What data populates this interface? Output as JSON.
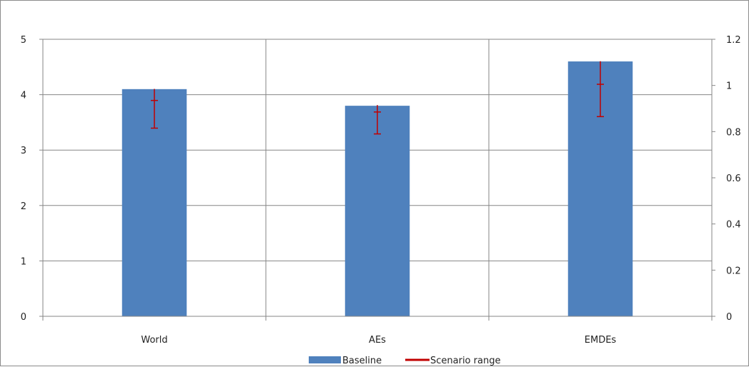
{
  "chart_data": {
    "type": "bar",
    "categories": [
      "World",
      "AEs",
      "EMDEs"
    ],
    "series": [
      {
        "name": "Baseline",
        "values": [
          4.1,
          3.8,
          4.6
        ],
        "color": "#4f81bd"
      }
    ],
    "scenario_range": {
      "name": "Scenario range",
      "color": "#c00000",
      "axis": "secondary",
      "mid": [
        0.935,
        0.885,
        1.005
      ],
      "low": [
        0.815,
        0.79,
        0.865
      ],
      "high": [
        0.985,
        0.915,
        1.105
      ]
    },
    "y_left": {
      "lim": [
        0,
        5
      ],
      "ticks": [
        "0",
        "1",
        "2",
        "3",
        "4",
        "5"
      ],
      "tick_values": [
        0,
        1,
        2,
        3,
        4,
        5
      ]
    },
    "y_right": {
      "lim": [
        0,
        1.2
      ],
      "ticks": [
        "0",
        "0.2",
        "0.4",
        "0.6",
        "0.8",
        "1",
        "1.2"
      ],
      "tick_values": [
        0,
        0.2,
        0.4,
        0.6,
        0.8,
        1,
        1.2
      ]
    },
    "grid": true,
    "legend": {
      "position": "bottom",
      "items": [
        "Baseline",
        "Scenario range"
      ]
    }
  }
}
